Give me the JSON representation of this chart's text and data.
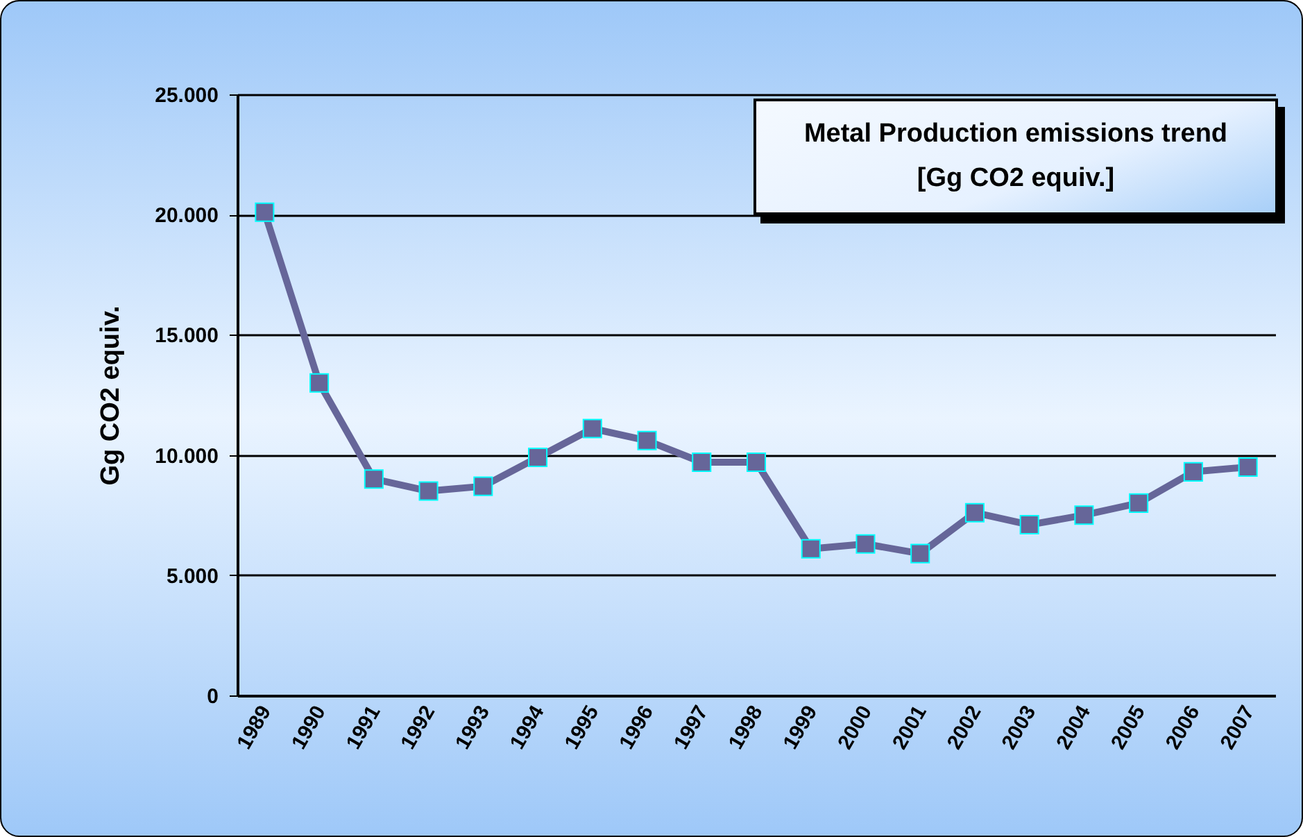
{
  "chart_data": {
    "type": "line",
    "title": "Metal Production emissions trend",
    "subtitle": "[Gg CO2 equiv.]",
    "ylabel": "Gg CO2 equiv.",
    "categories": [
      "1989",
      "1990",
      "1991",
      "1992",
      "1993",
      "1994",
      "1995",
      "1996",
      "1997",
      "1998",
      "1999",
      "2000",
      "2001",
      "2002",
      "2003",
      "2004",
      "2005",
      "2006",
      "2007"
    ],
    "series": [
      {
        "color": "#666699",
        "values": [
          20100,
          13000,
          9000,
          8500,
          8700,
          9900,
          11100,
          10600,
          9700,
          9700,
          6100,
          6300,
          5900,
          7600,
          7100,
          7500,
          8000,
          9300,
          9500
        ]
      }
    ],
    "ylim": [
      0,
      25000
    ],
    "yticks": [
      {
        "value": 0,
        "label": "0"
      },
      {
        "value": 5000,
        "label": "5.000"
      },
      {
        "value": 10000,
        "label": "10.000"
      },
      {
        "value": 15000,
        "label": "15.000"
      },
      {
        "value": 20000,
        "label": "20.000"
      },
      {
        "value": 25000,
        "label": "25.000"
      }
    ],
    "grid": "y",
    "marker": "square",
    "line_style": "solid"
  }
}
